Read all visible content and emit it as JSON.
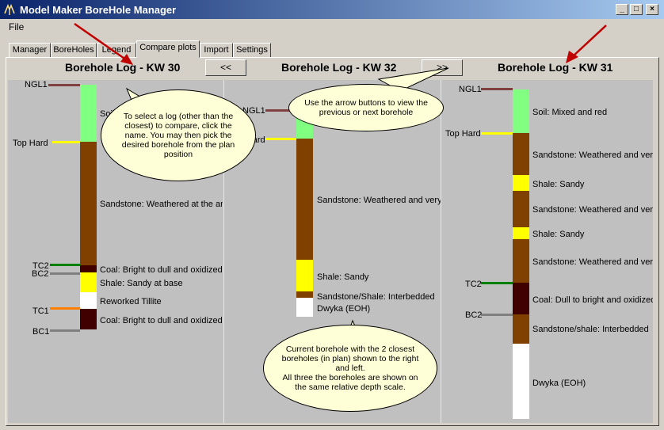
{
  "window": {
    "title": "Model Maker BoreHole Manager",
    "app_icon": "borehole-app-icon",
    "btn_min": "_",
    "btn_max": "□",
    "btn_close": "×"
  },
  "menu": {
    "file": "File"
  },
  "tabs": [
    {
      "label": "Manager"
    },
    {
      "label": "BoreHoles"
    },
    {
      "label": "Legend"
    },
    {
      "label": "Compare plots"
    },
    {
      "label": "Import"
    },
    {
      "label": "Settings"
    }
  ],
  "nav": {
    "prev": "<<",
    "next": ">>"
  },
  "logs": {
    "left": {
      "title": "Borehole Log - KW 30",
      "markers": [
        "NGL1",
        "Top Hard",
        "TC2",
        "BC2",
        "TC1",
        "BC1"
      ],
      "layers": [
        "Soil",
        "Sandstone: Weathered at the an",
        "Coal: Bright to dull and oxidized",
        "Shale: Sandy at base",
        "Reworked Tillite",
        "Coal: Bright to dull and oxidized (B"
      ]
    },
    "center": {
      "title": "Borehole Log - KW 32",
      "markers": [
        "NGL1",
        "Top Hard"
      ],
      "layers": [
        "Sandstone: Weathered and very",
        "Shale: Sandy",
        "Sandstone/Shale: Interbedded",
        "Dwyka (EOH)"
      ]
    },
    "right": {
      "title": "Borehole Log - KW 31",
      "markers": [
        "NGL1",
        "Top Hard",
        "TC2",
        "BC2"
      ],
      "layers": [
        "Soil: Mixed and red",
        "Sandstone: Weathered and very",
        "Shale: Sandy",
        "Sandstone: Weathered and very",
        "Shale: Sandy",
        "Sandstone: Weathered and very",
        "Coal: Dull to bright and oxidized",
        "Sandstone/shale: Interbedded",
        "Dwyka (EOH)"
      ]
    }
  },
  "callouts": {
    "select_log": "To select a log (other than the closest) to compare, click the name. You may then pick the desired borehole from the plan position",
    "arrows": "Use the arrow buttons to view the previous or next borehole",
    "current": "Current borehole with the 2 closest boreholes (in plan) shown to the right and left.\nAll three the boreholes are shown on the same relative depth scale."
  },
  "colors": {
    "soil": "#80ff80",
    "sandstone": "#804000",
    "shale": "#ffff00",
    "coal": "#400000",
    "tillite": "#ffffff",
    "dwyka": "#ffffff",
    "sand_shale": "#804000",
    "ngl": "#804040",
    "top_hard": "#ffff00",
    "tc": "#008000",
    "bc": "#808080",
    "tc1": "#ff8000",
    "arrow": "#c00000"
  }
}
